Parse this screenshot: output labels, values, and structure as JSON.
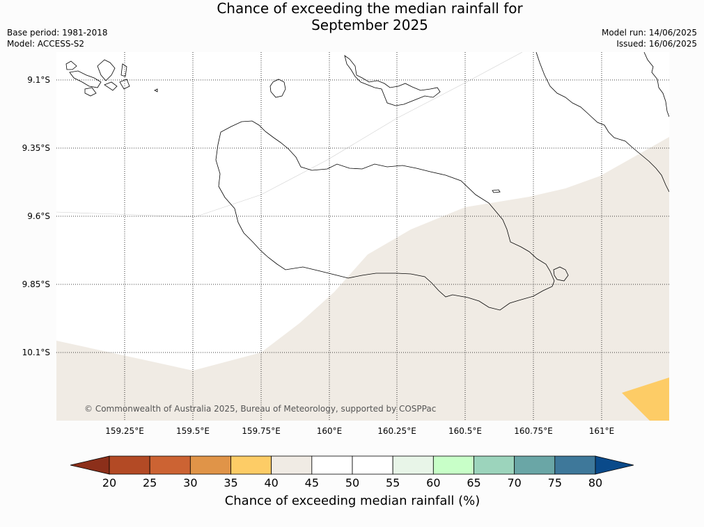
{
  "header": {
    "title_line1": "Chance of exceeding the median rainfall for",
    "title_line2": "September 2025",
    "base_period": "Base period: 1981-2018",
    "model": "Model: ACCESS-S2",
    "model_run": "Model run: 14/06/2025",
    "issued": "Issued: 16/06/2025"
  },
  "map": {
    "lat_labels": [
      "9.1°S",
      "9.35°S",
      "9.6°S",
      "9.85°S",
      "10.1°S"
    ],
    "lon_labels": [
      "159.25°E",
      "159.5°E",
      "159.75°E",
      "160°E",
      "160.25°E",
      "160.5°E",
      "160.75°E",
      "161°E"
    ],
    "credit": "© Commonwealth of Australia 2025, Bureau of Meteorology, supported by COSPPac",
    "colors": {
      "band_40_45": "#f0ebe4",
      "band_35_40": "#fdcc66",
      "coastline": "#000000",
      "grid": "#000000"
    }
  },
  "colorbar": {
    "title": "Chance of exceeding median rainfall (%)",
    "ticks": [
      "20",
      "25",
      "30",
      "35",
      "40",
      "45",
      "50",
      "55",
      "60",
      "65",
      "70",
      "75",
      "80"
    ],
    "colors": [
      "#8c2f1a",
      "#b34a25",
      "#cc6333",
      "#e09448",
      "#fdcc66",
      "#f0ebe4",
      "#ffffff",
      "#ffffff",
      "#e8f5e8",
      "#c8ffc8",
      "#9cd4bc",
      "#6aa6a6",
      "#3e789a",
      "#0a4a8a"
    ]
  }
}
